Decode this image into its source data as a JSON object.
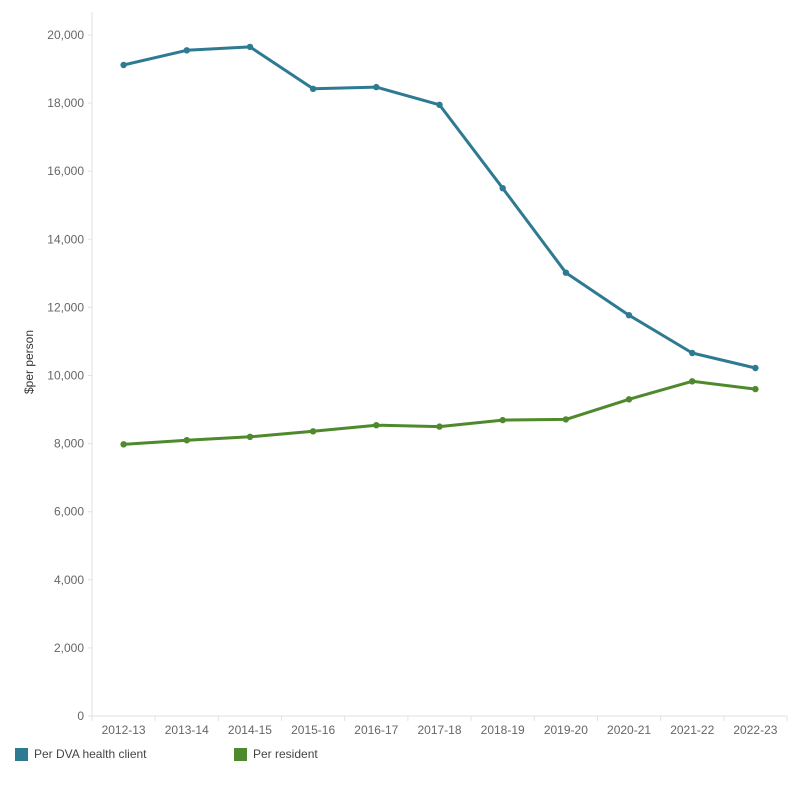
{
  "chart_data": {
    "type": "line",
    "title": "",
    "xlabel": "",
    "ylabel": "$per person",
    "categories": [
      "2012-13",
      "2013-14",
      "2014-15",
      "2015-16",
      "2016-17",
      "2017-18",
      "2018-19",
      "2019-20",
      "2020-21",
      "2021-22",
      "2022-23"
    ],
    "ylim": [
      0,
      20000
    ],
    "yticks": [
      0,
      2000,
      4000,
      6000,
      8000,
      10000,
      12000,
      14000,
      16000,
      18000,
      20000
    ],
    "ytick_labels": [
      "0",
      "2,000",
      "4,000",
      "6,000",
      "8,000",
      "10,000",
      "12,000",
      "14,000",
      "16,000",
      "18,000",
      "20,000"
    ],
    "grid": false,
    "legend_position": "bottom-left",
    "series": [
      {
        "name": "Per DVA health client",
        "color": "#2e7a93",
        "values": [
          19120,
          19550,
          19650,
          18420,
          18470,
          17950,
          15500,
          13020,
          11770,
          10660,
          10220
        ]
      },
      {
        "name": "Per resident",
        "color": "#4e8a2c",
        "values": [
          7980,
          8100,
          8200,
          8360,
          8540,
          8500,
          8690,
          8710,
          9300,
          9830,
          9600
        ]
      }
    ]
  }
}
